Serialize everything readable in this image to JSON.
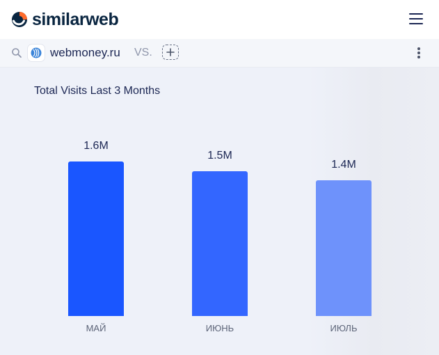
{
  "header": {
    "logo_text": "similarweb",
    "logo_icon": "similarweb-logo-icon",
    "menu_icon": "hamburger-menu-icon"
  },
  "searchbar": {
    "search_icon": "search-icon",
    "site": "webmoney.ru",
    "site_icon": "globe-favicon-icon",
    "vs_label": "VS.",
    "add_icon": "plus-icon",
    "more_icon": "more-vertical-icon"
  },
  "colors": {
    "logo_orange": "#ff6b2b",
    "logo_navy": "#092540",
    "bar_1": "#1a56ff",
    "bar_2": "#3366ff",
    "bar_3": "#6e92fb"
  },
  "chart_data": {
    "type": "bar",
    "title": "Total Visits Last 3 Months",
    "categories": [
      "МАЙ",
      "ИЮНЬ",
      "ИЮЛЬ"
    ],
    "values": [
      1.6,
      1.5,
      1.4
    ],
    "value_labels": [
      "1.6M",
      "1.5M",
      "1.4M"
    ],
    "unit": "M",
    "xlabel": "",
    "ylabel": "",
    "grid": false
  }
}
